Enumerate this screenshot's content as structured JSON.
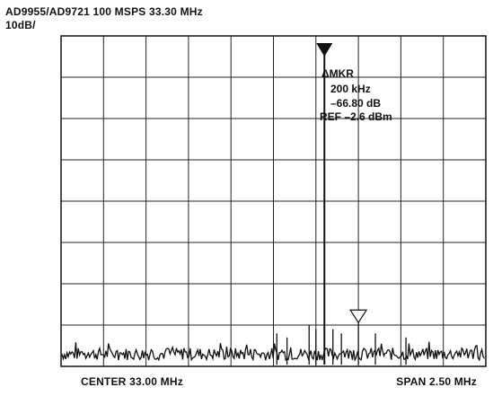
{
  "header": {
    "title": "AD9955/AD9721  100 MSPS 33.30 MHz",
    "scale": "10dB/"
  },
  "footer": {
    "center": "CENTER 33.00 MHz",
    "span": "SPAN 2.50 MHz"
  },
  "marker": {
    "line1": "ΔMKR",
    "line2": "200 kHz",
    "line3": "–66.80 dB",
    "line4": "REF –2.6 dBm"
  },
  "chart_data": {
    "type": "line",
    "x_unit": "MHz",
    "y_unit": "dB",
    "xlim": [
      31.75,
      34.25
    ],
    "ylim": [
      -80,
      0
    ],
    "grid": true,
    "x_divisions": 10,
    "y_divisions": 8,
    "reference_level_dBm": -2.6,
    "fundamental": {
      "frequency": 33.3,
      "level": -2.6
    },
    "delta_marker": {
      "frequency": 33.5,
      "level": -69.4
    },
    "noise_floor": -77,
    "spurs": [
      {
        "frequency": 33.02,
        "level": -72
      },
      {
        "frequency": 33.08,
        "level": -73
      },
      {
        "frequency": 33.21,
        "level": -70
      },
      {
        "frequency": 33.25,
        "level": -71
      },
      {
        "frequency": 33.35,
        "level": -71
      },
      {
        "frequency": 33.4,
        "level": -72
      },
      {
        "frequency": 33.5,
        "level": -69.4
      },
      {
        "frequency": 33.6,
        "level": -72
      },
      {
        "frequency": 33.78,
        "level": -73
      }
    ]
  }
}
